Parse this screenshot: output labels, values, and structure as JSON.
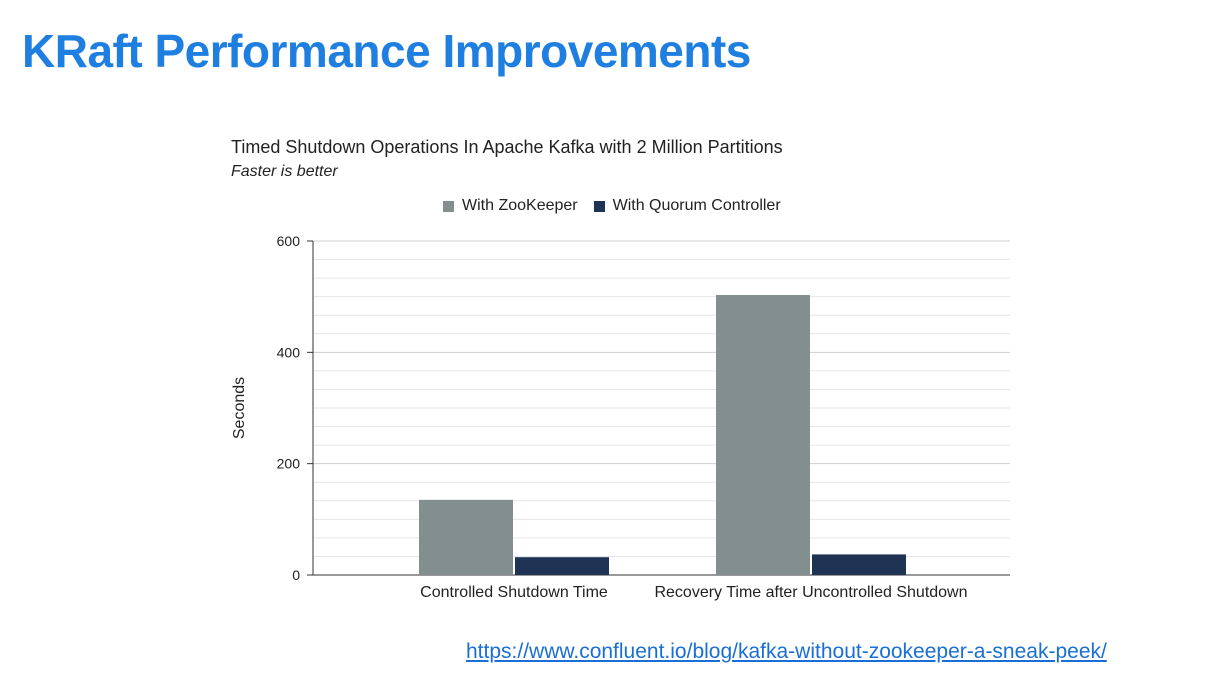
{
  "slide": {
    "title": "KRaft Performance Improvements",
    "link": "https://www.confluent.io/blog/kafka-without-zookeeper-a-sneak-peek/"
  },
  "colors": {
    "title": "#1f7fe0",
    "zookeeper": "#838f8e",
    "quorum": "#1f3354",
    "link": "#1a6fd6"
  },
  "chart_data": {
    "type": "bar",
    "title": "Timed Shutdown Operations In Apache Kafka with 2 Million Partitions",
    "subtitle": "Faster is better",
    "xlabel": "",
    "ylabel": "Seconds",
    "ylim": [
      0,
      600
    ],
    "yticks": [
      0,
      200,
      400,
      600
    ],
    "grid": true,
    "legend_position": "top",
    "categories": [
      "Controlled Shutdown Time",
      "Recovery Time after Uncontrolled Shutdown"
    ],
    "series": [
      {
        "name": "With ZooKeeper",
        "values": [
          135,
          503
        ]
      },
      {
        "name": "With Quorum Controller",
        "values": [
          32,
          37
        ]
      }
    ]
  }
}
